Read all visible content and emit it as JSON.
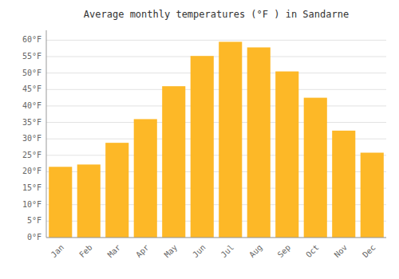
{
  "chart_data": {
    "type": "bar",
    "title": "Average monthly temperatures (°F ) in Sandarne",
    "categories": [
      "Jan",
      "Feb",
      "Mar",
      "Apr",
      "May",
      "Jun",
      "Jul",
      "Aug",
      "Sep",
      "Oct",
      "Nov",
      "Dec"
    ],
    "values": [
      21.5,
      22.2,
      28.8,
      36.0,
      46.0,
      55.2,
      59.5,
      57.8,
      50.5,
      42.5,
      32.5,
      25.8
    ],
    "color": "#FDB827",
    "ylim": [
      0,
      63
    ],
    "yticks": [
      {
        "value": 0,
        "label": "0°F"
      },
      {
        "value": 5,
        "label": "5°F"
      },
      {
        "value": 10,
        "label": "10°F"
      },
      {
        "value": 15,
        "label": "15°F"
      },
      {
        "value": 20,
        "label": "20°F"
      },
      {
        "value": 25,
        "label": "25°F"
      },
      {
        "value": 30,
        "label": "30°F"
      },
      {
        "value": 35,
        "label": "35°F"
      },
      {
        "value": 40,
        "label": "40°F"
      },
      {
        "value": 45,
        "label": "45°F"
      },
      {
        "value": 50,
        "label": "50°F"
      },
      {
        "value": 55,
        "label": "55°F"
      },
      {
        "value": 60,
        "label": "60°F"
      }
    ],
    "grid": true
  }
}
